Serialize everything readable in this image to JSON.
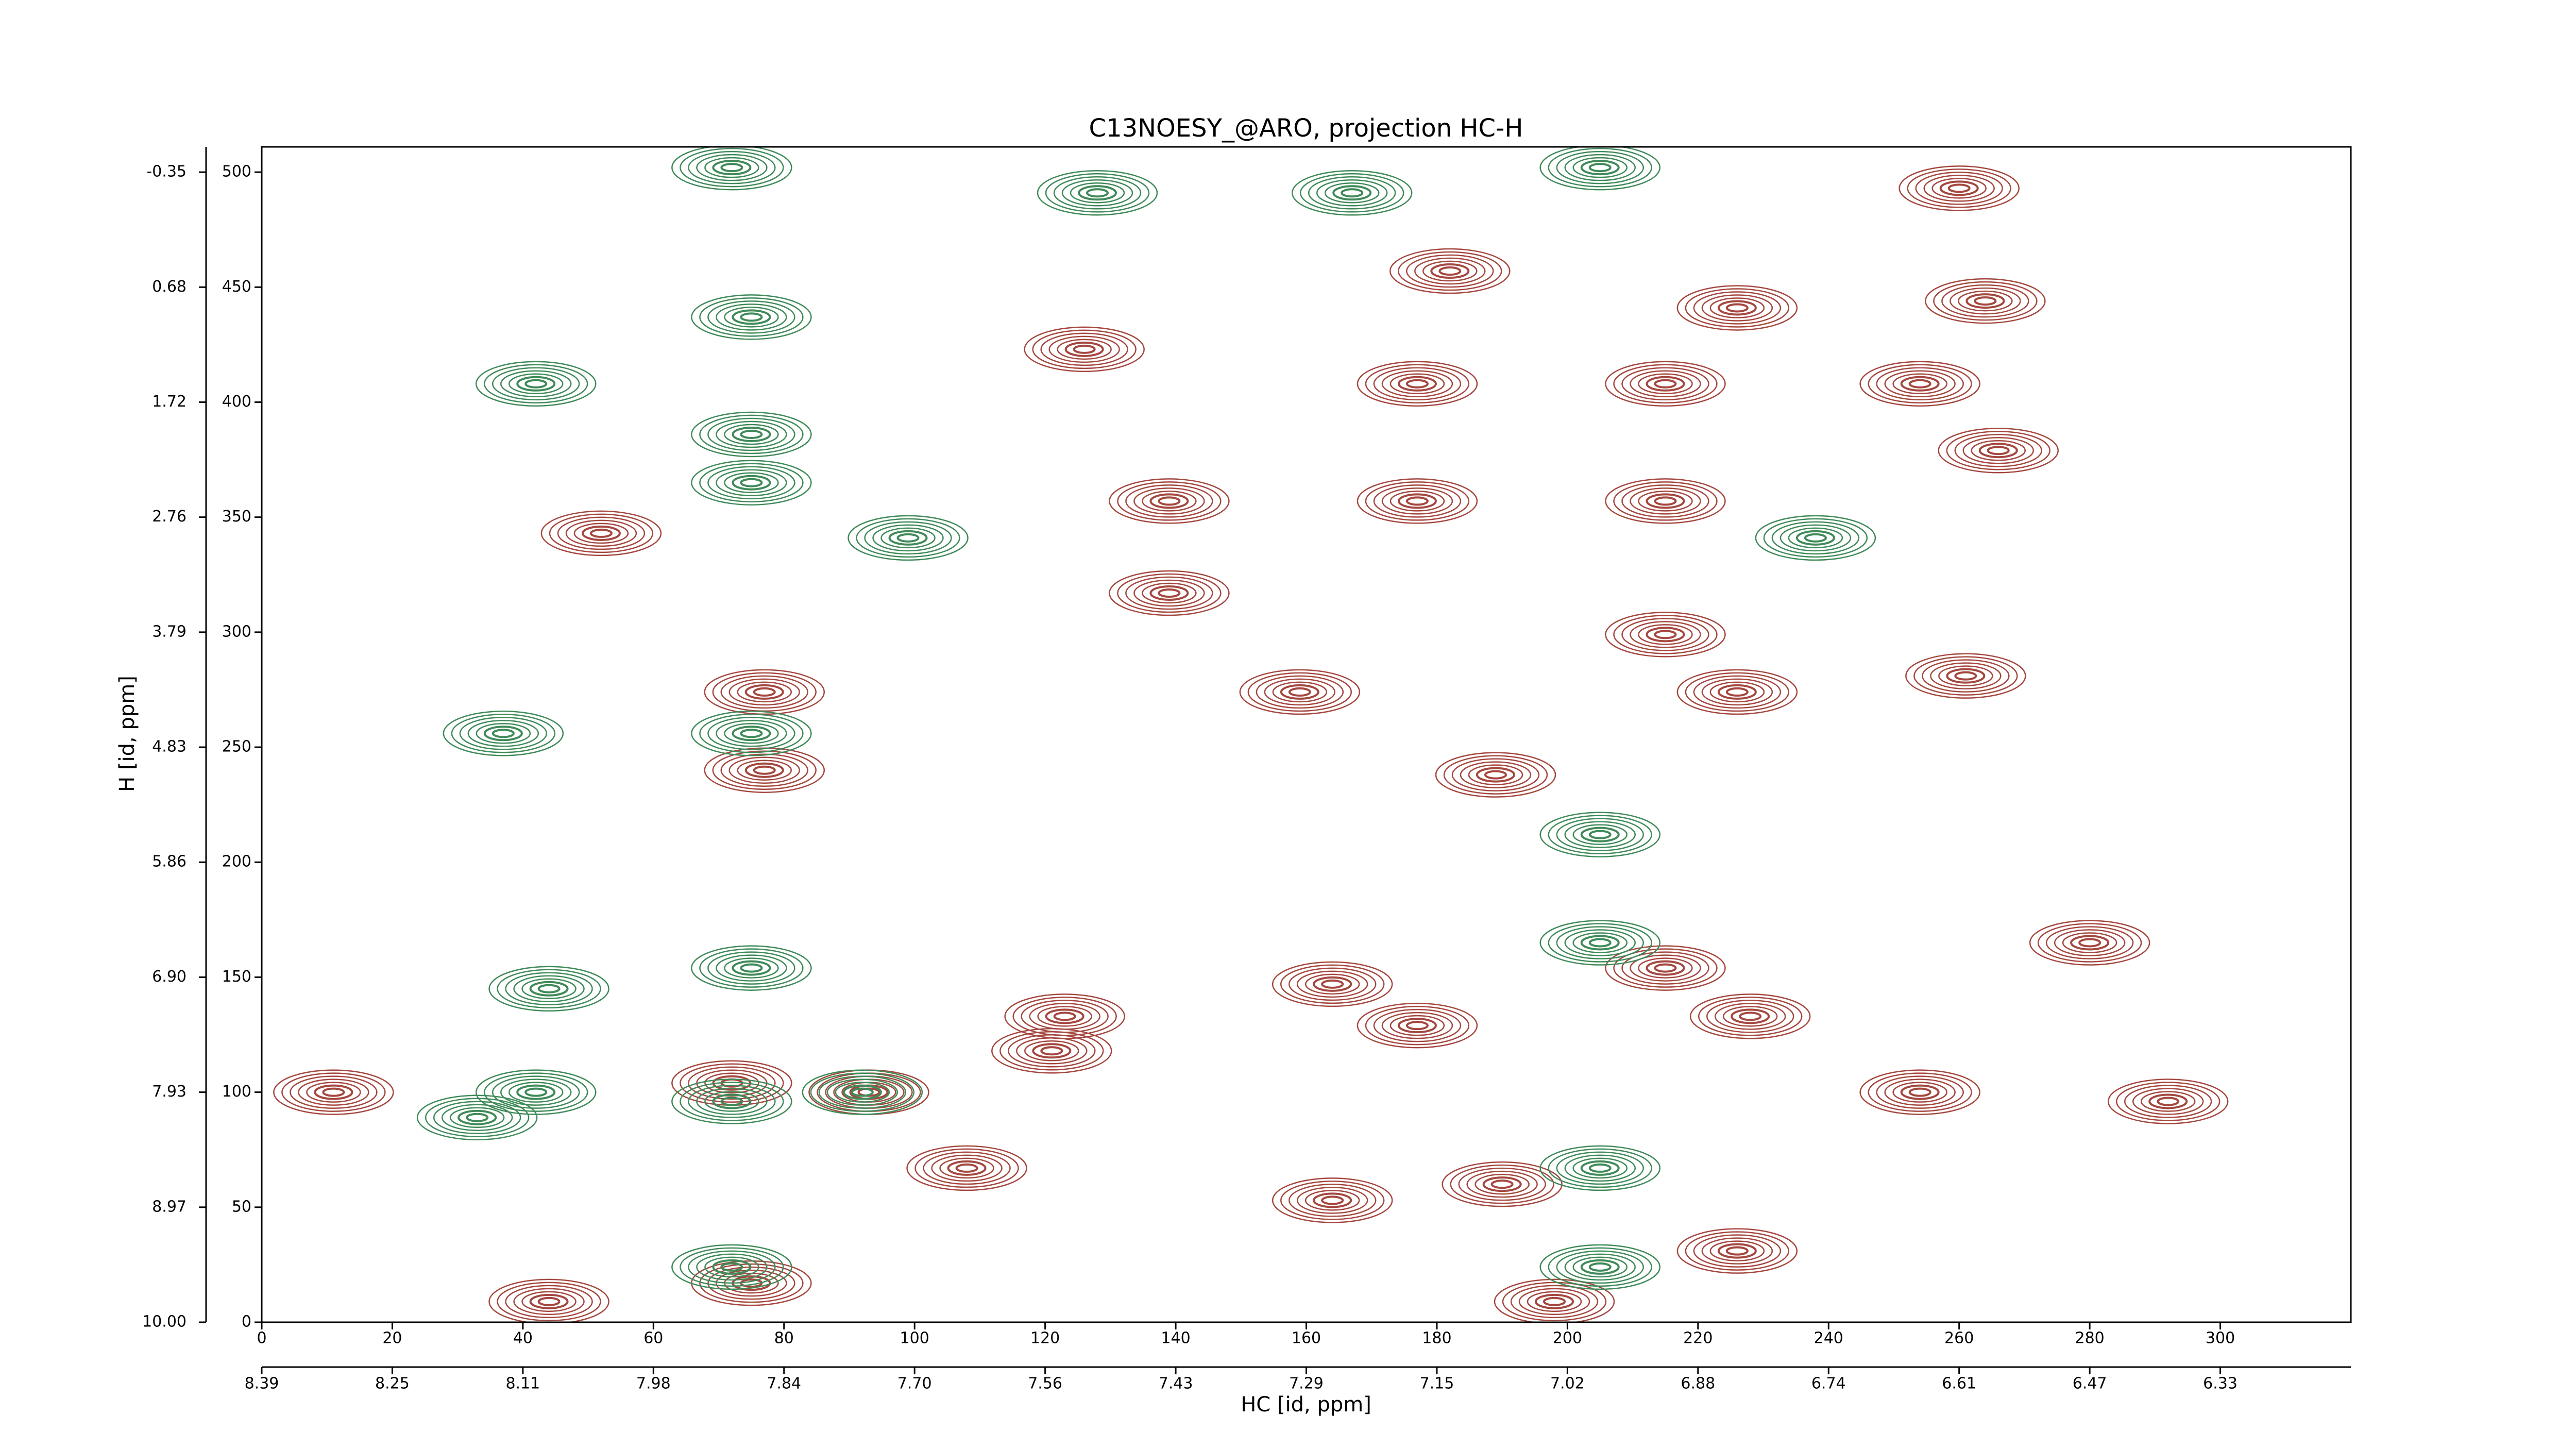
{
  "chart_data": {
    "type": "contour",
    "title": "C13NOESY_@ARO, projection HC-H",
    "xlabel": "HC [id, ppm]",
    "ylabel": "H [id, ppm]",
    "xlim": [
      0,
      320
    ],
    "ylim": [
      0,
      511
    ],
    "xticks": [
      0,
      20,
      40,
      60,
      80,
      100,
      120,
      140,
      160,
      180,
      200,
      220,
      240,
      260,
      280,
      300
    ],
    "yticks": [
      0,
      50,
      100,
      150,
      200,
      250,
      300,
      350,
      400,
      450,
      500
    ],
    "xticks_ppm": [
      {
        "value": 0,
        "label": "8.39"
      },
      {
        "value": 20,
        "label": "8.25"
      },
      {
        "value": 40,
        "label": "8.11"
      },
      {
        "value": 60,
        "label": "7.98"
      },
      {
        "value": 80,
        "label": "7.84"
      },
      {
        "value": 100,
        "label": "7.70"
      },
      {
        "value": 120,
        "label": "7.56"
      },
      {
        "value": 140,
        "label": "7.43"
      },
      {
        "value": 160,
        "label": "7.29"
      },
      {
        "value": 180,
        "label": "7.15"
      },
      {
        "value": 200,
        "label": "7.02"
      },
      {
        "value": 220,
        "label": "6.88"
      },
      {
        "value": 240,
        "label": "6.74"
      },
      {
        "value": 260,
        "label": "6.61"
      },
      {
        "value": 280,
        "label": "6.47"
      },
      {
        "value": 300,
        "label": "6.33"
      }
    ],
    "yticks_ppm": [
      {
        "value": 0,
        "label": "10.00"
      },
      {
        "value": 50,
        "label": "8.97"
      },
      {
        "value": 100,
        "label": "7.93"
      },
      {
        "value": 150,
        "label": "6.90"
      },
      {
        "value": 200,
        "label": "5.86"
      },
      {
        "value": 250,
        "label": "4.83"
      },
      {
        "value": 300,
        "label": "3.79"
      },
      {
        "value": 350,
        "label": "2.76"
      },
      {
        "value": 400,
        "label": "1.72"
      },
      {
        "value": 450,
        "label": "0.68"
      },
      {
        "value": 500,
        "label": "-0.35"
      }
    ],
    "series": [
      {
        "color": "#a4473f",
        "x": [
          260,
          182,
          226,
          264,
          139,
          177,
          215,
          266,
          159,
          226,
          261,
          77,
          77,
          189,
          215,
          139,
          177,
          215,
          254,
          126,
          280,
          215,
          164,
          123,
          121,
          93,
          72,
          177,
          228,
          254,
          292,
          108,
          190,
          75,
          44,
          198,
          11,
          52,
          164,
          226
        ],
        "y": [
          493,
          457,
          441,
          444,
          357,
          357,
          357,
          379,
          274,
          274,
          281,
          274,
          240,
          238,
          299,
          317,
          408,
          408,
          408,
          423,
          165,
          154,
          147,
          133,
          118,
          100,
          104,
          129,
          133,
          100,
          96,
          67,
          60,
          17,
          9,
          9,
          100,
          343,
          53,
          31
        ]
      },
      {
        "color": "#3f8a58",
        "x": [
          42,
          33,
          72,
          92,
          128,
          167,
          42,
          75,
          75,
          75,
          75,
          37,
          99,
          238,
          75,
          44,
          205,
          205,
          205,
          72,
          72,
          205,
          205
        ],
        "y": [
          100,
          89,
          96,
          100,
          491,
          491,
          408,
          437,
          386,
          365,
          256,
          256,
          341,
          341,
          154,
          145,
          165,
          67,
          24,
          24,
          502,
          502,
          212
        ]
      }
    ]
  }
}
